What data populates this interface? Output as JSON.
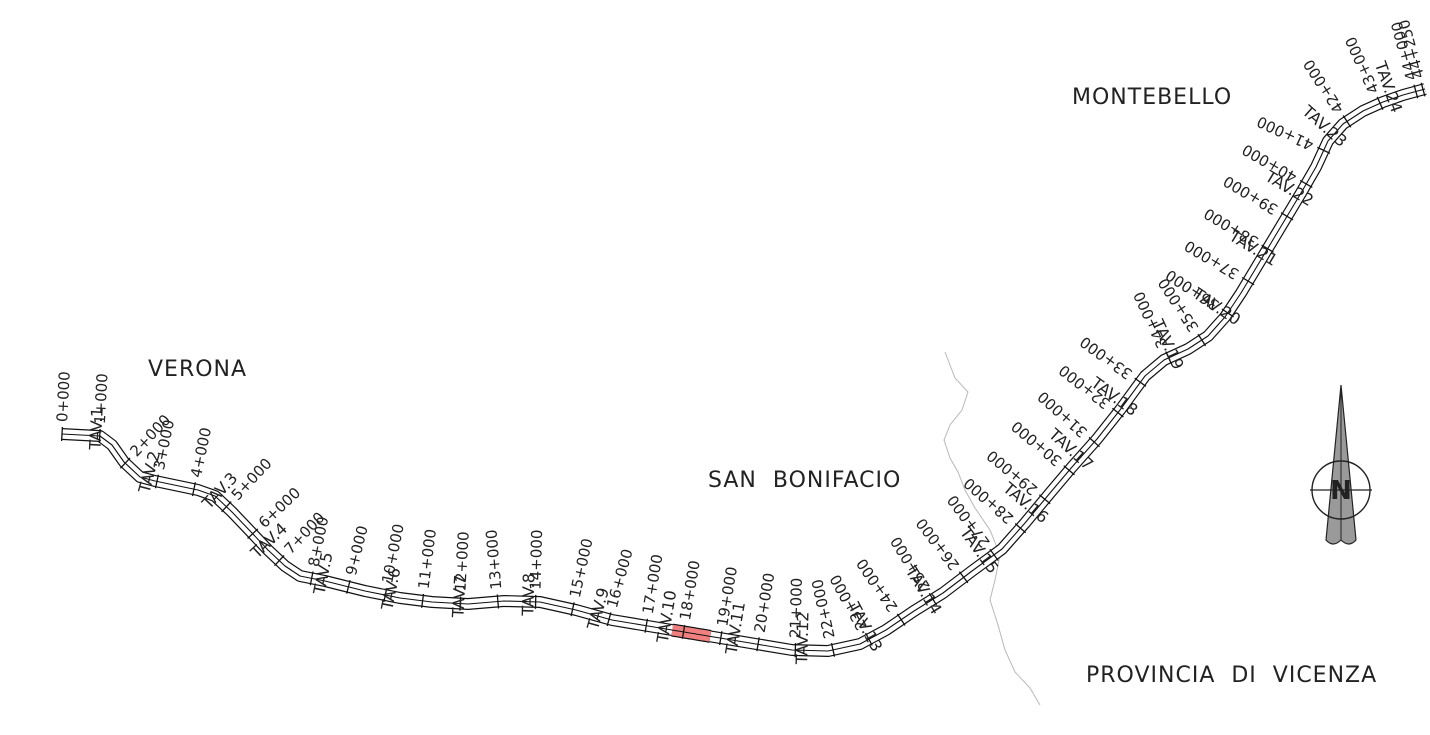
{
  "places": {
    "verona": "VERONA",
    "montebello": "MONTEBELLO",
    "san_bonifacio": "SAN  BONIFACIO",
    "provincia": "PROVINCIA  DI  VICENZA"
  },
  "compass_letter": "N",
  "highlight_color": "#f08080",
  "highlighted_sheet": "TAV.8",
  "chainages": [
    "0+000",
    "1+000",
    "2+000",
    "3+000",
    "4+000",
    "5+000",
    "6+000",
    "7+000",
    "8+000",
    "9+000",
    "10+000",
    "11+000",
    "12+000",
    "13+000",
    "14+000",
    "15+000",
    "16+000",
    "17+000",
    "18+000",
    "19+000",
    "20+000",
    "21+000",
    "22+000",
    "23+000",
    "24+000",
    "25+000",
    "26+000",
    "27+000",
    "28+000",
    "29+000",
    "30+000",
    "31+000",
    "32+000",
    "33+000",
    "34+000",
    "35+000",
    "36+000",
    "37+000",
    "38+000",
    "39+000",
    "40+000",
    "41+000",
    "42+000",
    "43+000",
    "44+000",
    "44+250"
  ],
  "sheets": [
    "TAV.1",
    "TAV.2",
    "TAV.3",
    "TAV.4",
    "TAV.5",
    "TAV.6",
    "TAV.7",
    "TAV.8",
    "TAV.9",
    "TAV.10",
    "TAV.11",
    "TAV.12",
    "TAV.13",
    "TAV.14",
    "TAV.15",
    "TAV.16",
    "TAV.17",
    "TAV.18",
    "TAV.19",
    "TAV.20",
    "TAV.21",
    "TAV.22",
    "TAV.23",
    "TAV.24"
  ]
}
